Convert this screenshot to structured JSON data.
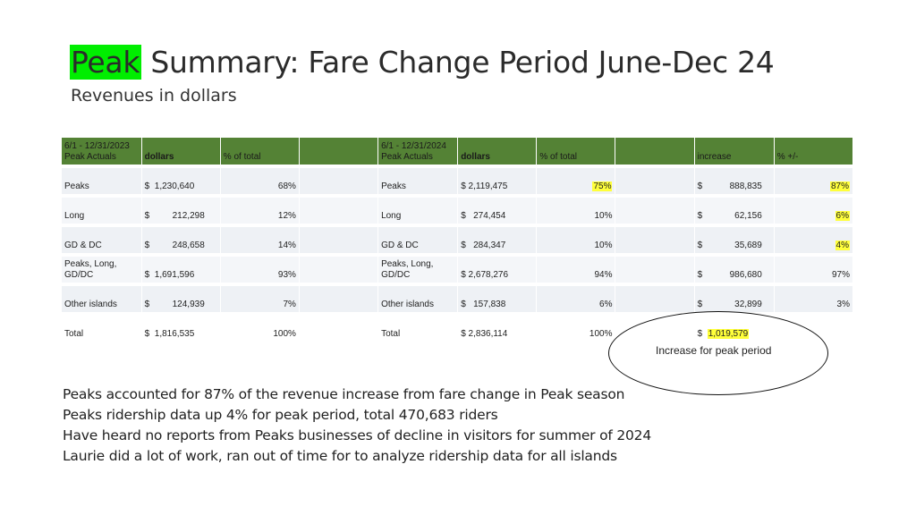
{
  "title": {
    "highlight": "Peak",
    "rest": " Summary: Fare Change Period June-Dec 24"
  },
  "subtitle": "Revenues in dollars",
  "table": {
    "header": {
      "period_2023": [
        "6/1 - 12/31/2023",
        "Peak Actuals"
      ],
      "dollars_2023": "dollars",
      "pct_2023": "% of total",
      "period_2024": [
        "6/1 - 12/31/2024",
        "Peak Actuals"
      ],
      "dollars_2024": "dollars",
      "pct_2024": "% of total",
      "increase": "increase",
      "pct_change": "% +/-"
    },
    "rows": [
      {
        "label": "Peaks",
        "d23": "1,230,640",
        "p23": "68%",
        "label24": "Peaks",
        "d24": "2,119,475",
        "p24": "75%",
        "inc": "888,835",
        "chg": "87%"
      },
      {
        "label": "Long",
        "d23": "212,298",
        "p23": "12%",
        "label24": "Long",
        "d24": "274,454",
        "p24": "10%",
        "inc": "62,156",
        "chg": "6%"
      },
      {
        "label": "GD & DC",
        "d23": "248,658",
        "p23": "14%",
        "label24": "GD & DC",
        "d24": "284,347",
        "p24": "10%",
        "inc": "35,689",
        "chg": "4%"
      },
      {
        "label": [
          "Peaks, Long,",
          "GD/DC"
        ],
        "d23": "1,691,596",
        "p23": "93%",
        "label24": [
          "Peaks, Long,",
          "GD/DC"
        ],
        "d24": "2,678,276",
        "p24": "94%",
        "inc": "986,680",
        "chg": "97%"
      },
      {
        "label": "Other islands",
        "d23": "124,939",
        "p23": "7%",
        "label24": "Other islands",
        "d24": "157,838",
        "p24": "6%",
        "inc": "32,899",
        "chg": "3%"
      },
      {
        "label": "Total",
        "d23": "1,816,535",
        "p23": "100%",
        "label24": "Total",
        "d24": "2,836,114",
        "p24": "100%",
        "inc": "1,019,579",
        "chg": ""
      }
    ],
    "currency": "$",
    "highlight_color": "#ffff3a",
    "header_color": "#548235"
  },
  "callout": "Increase for peak period",
  "notes": [
    "Peaks accounted for 87% of the revenue increase from fare change in Peak season",
    "Peaks ridership data up 4% for peak period, total 470,683 riders",
    "Have heard no reports from Peaks businesses of decline in visitors for summer of 2024",
    "Laurie did a lot of work, ran out of time for to analyze ridership data for all islands"
  ]
}
